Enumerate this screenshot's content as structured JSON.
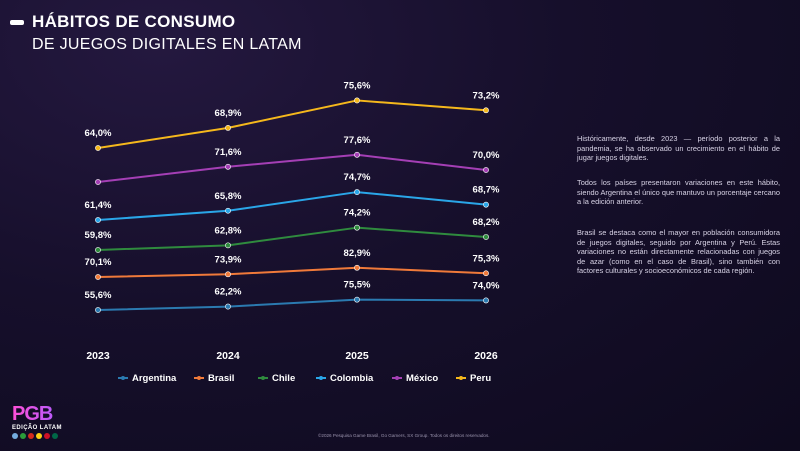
{
  "header": {
    "title_line1": "HÁBITOS DE CONSUMO",
    "title_line2": "DE JUEGOS DIGITALES EN LATAM"
  },
  "chart_data": {
    "type": "line",
    "x": [
      "2023",
      "2024",
      "2025",
      "2026"
    ],
    "legend_position": "bottom",
    "grid": false,
    "series": [
      {
        "name": "Argentina",
        "color": "#2b7ab0",
        "values": [
          55.6,
          62.2,
          75.5,
          74.0
        ],
        "labels": [
          "55,6%",
          "62,2%",
          "75,5%",
          "74,0%"
        ]
      },
      {
        "name": "Brasil",
        "color": "#f07a3a",
        "values": [
          70.1,
          73.9,
          82.9,
          75.3
        ],
        "labels": [
          "70,1%",
          "73,9%",
          "82,9%",
          "75,3%"
        ]
      },
      {
        "name": "Chile",
        "color": "#2f8b3e",
        "values": [
          59.8,
          62.8,
          74.2,
          68.2
        ],
        "labels": [
          "59,8%",
          "62,8%",
          "74,2%",
          "68,2%"
        ]
      },
      {
        "name": "Colombia",
        "color": "#2aa6e8",
        "values": [
          61.4,
          65.8,
          74.7,
          68.7
        ],
        "labels": [
          "61,4%",
          "65,8%",
          "74,7%",
          "68,7%"
        ]
      },
      {
        "name": "México",
        "color": "#a43fb5",
        "values": [
          64.0,
          71.6,
          77.6,
          70.0
        ],
        "labels": [
          "",
          "71,6%",
          "77,6%",
          "70,0%"
        ]
      },
      {
        "name": "Peru",
        "color": "#f5b81c",
        "values": [
          64.0,
          68.9,
          75.6,
          73.2
        ],
        "labels": [
          "64,0%",
          "68,9%",
          "75,6%",
          "73,2%"
        ]
      }
    ]
  },
  "side_text": {
    "p1": "Históricamente, desde 2023 — período posterior a la pandemia, se ha observado un crecimiento en el hábito de jugar juegos digitales.",
    "p2": "Todos los países presentaron variaciones en este hábito, siendo Argentina el único que mantuvo un porcentaje cercano a la edición anterior.",
    "p3": "Brasil se destaca como el mayor en población consumidora de juegos digitales, seguido por Argentina y Perú. Estas variaciones no están directamente relacionadas con juegos de azar (como en el caso de Brasil), sino también con factores culturales y socioeconómicos de cada región."
  },
  "logo": {
    "word": "PGB",
    "sub": "EDIÇÃO LATAM",
    "flag_colors": [
      "#74acdf",
      "#2a9d3a",
      "#d52b1e",
      "#fcd116",
      "#ce1126",
      "#006847"
    ]
  },
  "footer": "©2026 Pesquisa Game Brasil, Go Gamers, SX Group. Todos os direitos reservados."
}
